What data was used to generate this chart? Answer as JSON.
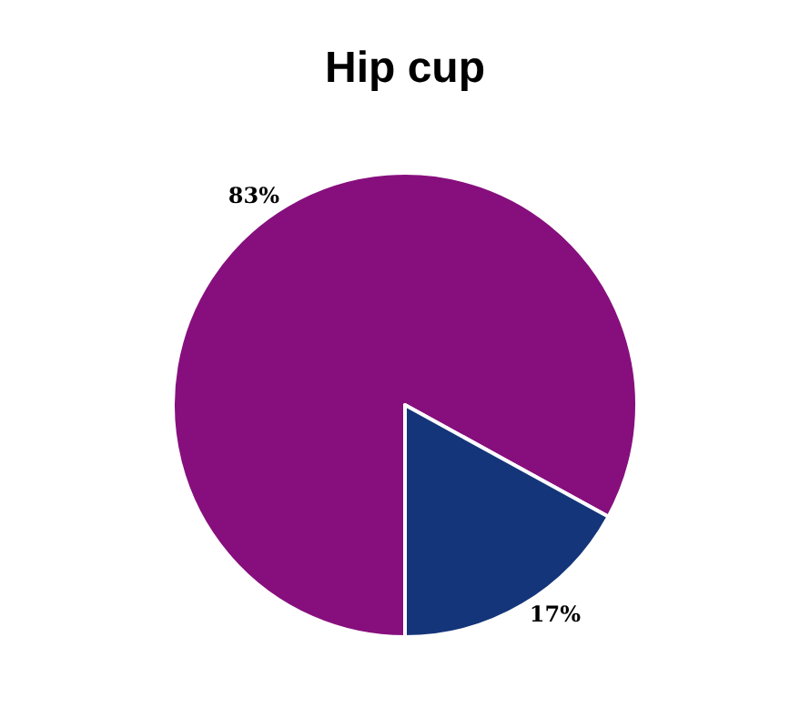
{
  "chart_data": {
    "type": "pie",
    "title": "Hip cup",
    "categories": [
      null,
      null
    ],
    "values": [
      83,
      17
    ],
    "colors": [
      "#870f7d",
      "#14357a"
    ],
    "value_labels": [
      "83%",
      "17%"
    ],
    "legend": false
  }
}
